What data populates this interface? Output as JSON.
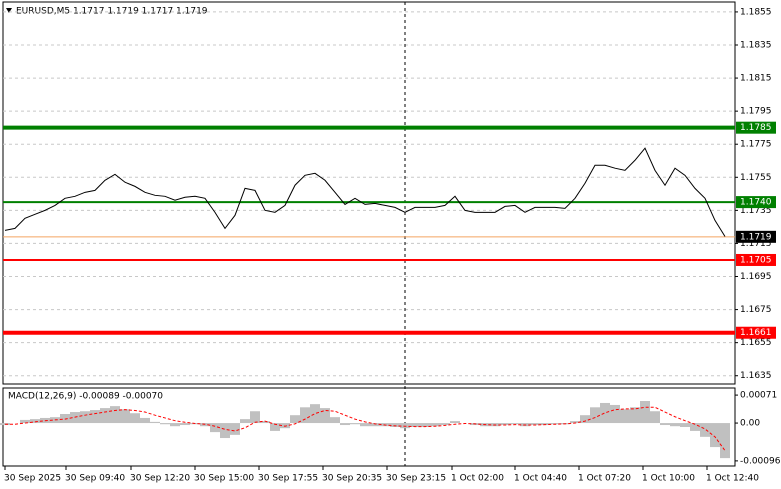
{
  "chart_data": [
    {
      "type": "line",
      "title": "EURUSD,M5  1.1717 1.1719 1.1717 1.1719",
      "xlim": [
        0,
        72
      ],
      "ylim": [
        1.163,
        1.1861
      ],
      "yticks": [
        1.1855,
        1.1835,
        1.1815,
        1.1795,
        1.1775,
        1.1755,
        1.1735,
        1.1715,
        1.1695,
        1.1675,
        1.1655,
        1.1635
      ],
      "grid": true,
      "vlines": [
        40
      ],
      "levels": [
        {
          "value": 1.1785,
          "label": "1.1785",
          "color": "#008000",
          "width": 4,
          "box": "#008000"
        },
        {
          "value": 1.174,
          "label": "1.1740",
          "color": "#008000",
          "width": 2,
          "box": "#008000"
        },
        {
          "value": 1.1719,
          "label": "1.1719",
          "color": "#f4a460",
          "width": 1,
          "box": "#000000"
        },
        {
          "value": 1.1705,
          "label": "1.1705",
          "color": "#ff0000",
          "width": 2,
          "box": "#ff0000"
        },
        {
          "value": 1.1661,
          "label": "1.1661",
          "color": "#ff0000",
          "width": 4,
          "box": "#ff0000"
        }
      ],
      "series": [
        {
          "color": "#000000",
          "values": [
            1.17229,
            1.17241,
            1.17302,
            1.17326,
            1.1735,
            1.1738,
            1.17423,
            1.17435,
            1.17459,
            1.17471,
            1.17532,
            1.17568,
            1.1752,
            1.17495,
            1.17459,
            1.17441,
            1.17435,
            1.17411,
            1.17429,
            1.17435,
            1.17423,
            1.17338,
            1.17241,
            1.1732,
            1.17483,
            1.17471,
            1.1735,
            1.17338,
            1.1738,
            1.17502,
            1.17562,
            1.17574,
            1.17532,
            1.17459,
            1.17386,
            1.17423,
            1.17386,
            1.17392,
            1.1738,
            1.17368,
            1.17338,
            1.17368,
            1.17368,
            1.17368,
            1.1738,
            1.17435,
            1.1735,
            1.17338,
            1.17338,
            1.17338,
            1.17374,
            1.1738,
            1.17338,
            1.17368,
            1.17368,
            1.17368,
            1.17362,
            1.17423,
            1.17514,
            1.17623,
            1.17623,
            1.17605,
            1.17592,
            1.17653,
            1.17726,
            1.17592,
            1.17502,
            1.17605,
            1.17562,
            1.17483,
            1.17423,
            1.17289,
            1.17192
          ]
        }
      ]
    },
    {
      "type": "bar",
      "title": "MACD(12,26,9) -0.00089 -0.00070",
      "xlim": [
        0,
        72
      ],
      "ylim": [
        -0.00109,
        0.00089
      ],
      "yticks": [
        0.00071,
        {
          "value": 0,
          "label": "0.00"
        },
        -0.00096
      ],
      "xticks": [
        {
          "value": 0,
          "label": "30 Sep 2025"
        },
        {
          "value": 6.1,
          "label": "30 Sep 09:40"
        },
        {
          "value": 12.6,
          "label": "30 Sep 12:20"
        },
        {
          "value": 19,
          "label": "30 Sep 15:00"
        },
        {
          "value": 25.4,
          "label": "30 Sep 17:55"
        },
        {
          "value": 31.8,
          "label": "30 Sep 20:35"
        },
        {
          "value": 38.2,
          "label": "30 Sep 23:15"
        },
        {
          "value": 44.7,
          "label": "1 Oct 02:00"
        },
        {
          "value": 51,
          "label": "1 Oct 04:40"
        },
        {
          "value": 57.4,
          "label": "1 Oct 07:20"
        },
        {
          "value": 63.8,
          "label": "1 Oct 10:00"
        },
        {
          "value": 70.2,
          "label": "1 Oct 12:40"
        }
      ],
      "series": [
        {
          "type": "bar",
          "color": "#c0c0c0",
          "values": [
            -5e-05,
            0,
            8e-05,
            0.0001,
            0.00013,
            0.00015,
            0.00023,
            0.00028,
            0.0003,
            0.00033,
            0.00038,
            0.00043,
            0.00035,
            0.00025,
            0.00013,
            3e-05,
            -3e-05,
            -8e-05,
            -5e-05,
            -3e-05,
            -8e-05,
            -0.00023,
            -0.00038,
            -0.0003,
            0.0001,
            0.0003,
            5e-05,
            -0.0002,
            -0.00013,
            0.0002,
            0.0004,
            0.00048,
            0.00038,
            0.00015,
            -5e-05,
            -3e-05,
            -8e-05,
            -8e-05,
            -8e-05,
            -0.0001,
            -0.00013,
            -0.0001,
            -0.0001,
            -8e-05,
            -5e-05,
            5e-05,
            0,
            -5e-05,
            -8e-05,
            -8e-05,
            -5e-05,
            -3e-05,
            -8e-05,
            -5e-05,
            -5e-05,
            -3e-05,
            -3e-05,
            5e-05,
            0.0002,
            0.0004,
            0.00051,
            0.00046,
            0.00035,
            0.0004,
            0.00056,
            0.0003,
            -5e-05,
            -8e-05,
            -0.0001,
            -0.0002,
            -0.00035,
            -0.00061,
            -0.00089
          ]
        },
        {
          "type": "line",
          "color": "#ff0000",
          "dashed": true,
          "values": [
            -3e-05,
            -3e-05,
            0,
            3e-05,
            6e-05,
            8e-05,
            0.0001,
            0.00015,
            0.0002,
            0.00024,
            0.00028,
            0.00032,
            0.00034,
            0.00032,
            0.00028,
            0.0002,
            0.00013,
            6e-05,
            2e-05,
            -1e-05,
            -3e-05,
            -8e-05,
            -0.00016,
            -0.0002,
            -0.00012,
            2e-05,
            5e-05,
            -3e-05,
            -8e-05,
            -2e-05,
            0.0001,
            0.00024,
            0.00032,
            0.0003,
            0.0002,
            0.0001,
            3e-05,
            -2e-05,
            -5e-05,
            -7e-05,
            -8e-05,
            -9e-05,
            -9e-05,
            -8e-05,
            -6e-05,
            -3e-05,
            -1e-05,
            -2e-05,
            -4e-05,
            -5e-05,
            -5e-05,
            -4e-05,
            -5e-05,
            -5e-05,
            -4e-05,
            -3e-05,
            -2e-05,
            0,
            5e-05,
            0.00014,
            0.00026,
            0.00034,
            0.00036,
            0.00036,
            0.0004,
            0.0004,
            0.00028,
            0.00016,
            6e-05,
            -3e-05,
            -0.00015,
            -0.00035,
            -0.0007
          ]
        }
      ]
    }
  ]
}
